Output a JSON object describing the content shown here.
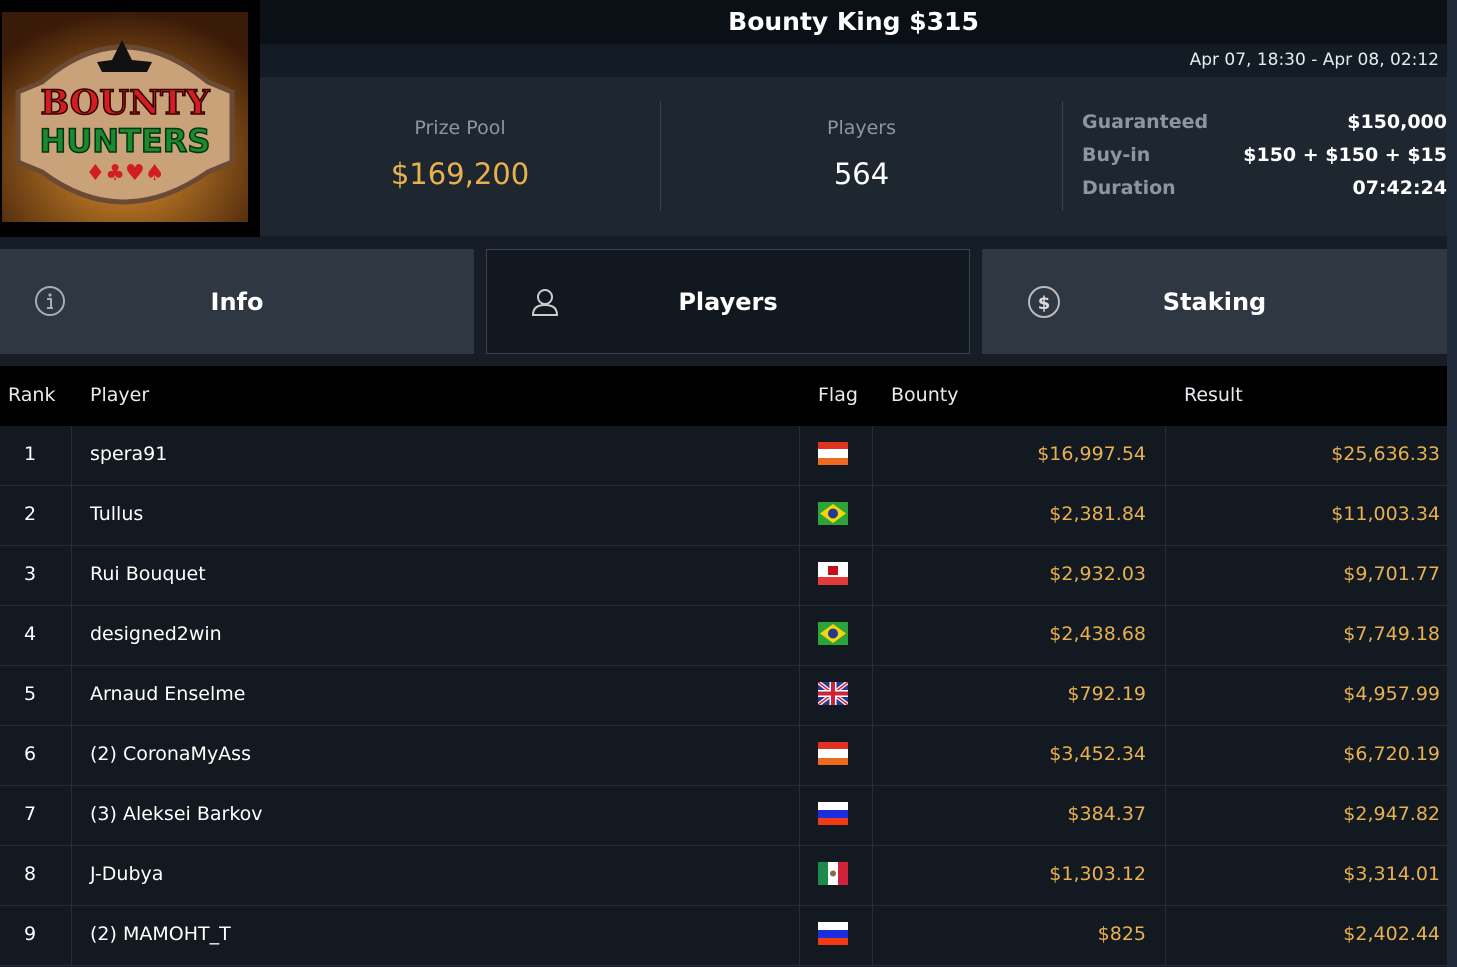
{
  "logo": {
    "text": "BOUNTY HUNTERS"
  },
  "header": {
    "title": "Bounty King $315",
    "date_range": "Apr 07, 18:30 - Apr 08, 02:12"
  },
  "stats": {
    "prize_pool_label": "Prize Pool",
    "prize_pool": "$169,200",
    "players_label": "Players",
    "players": "564",
    "details": [
      {
        "label": "Guaranteed",
        "value": "$150,000"
      },
      {
        "label": "Buy-in",
        "value": "$150 + $150 + $15"
      },
      {
        "label": "Duration",
        "value": "07:42:24"
      }
    ]
  },
  "tabs": [
    {
      "label": "Info",
      "icon": "info-icon"
    },
    {
      "label": "Players",
      "icon": "user-icon",
      "active": true
    },
    {
      "label": "Staking",
      "icon": "dollar-coin-icon"
    }
  ],
  "table": {
    "headers": {
      "rank": "Rank",
      "player": "Player",
      "flag": "Flag",
      "bounty": "Bounty",
      "result": "Result"
    },
    "rows": [
      {
        "rank": "1",
        "player": "spera91",
        "flag": "austria",
        "bounty": "$16,997.54",
        "result": "$25,636.33"
      },
      {
        "rank": "2",
        "player": "Tullus",
        "flag": "brazil",
        "bounty": "$2,381.84",
        "result": "$11,003.34"
      },
      {
        "rank": "3",
        "player": "Rui Bouquet",
        "flag": "gibraltar",
        "bounty": "$2,932.03",
        "result": "$9,701.77"
      },
      {
        "rank": "4",
        "player": "designed2win",
        "flag": "brazil",
        "bounty": "$2,438.68",
        "result": "$7,749.18"
      },
      {
        "rank": "5",
        "player": "Arnaud Enselme",
        "flag": "uk",
        "bounty": "$792.19",
        "result": "$4,957.99"
      },
      {
        "rank": "6",
        "player": "(2) CoronaMyAss",
        "flag": "austria",
        "bounty": "$3,452.34",
        "result": "$6,720.19"
      },
      {
        "rank": "7",
        "player": "(3) Aleksei Barkov",
        "flag": "russia",
        "bounty": "$384.37",
        "result": "$2,947.82"
      },
      {
        "rank": "8",
        "player": "J-Dubya",
        "flag": "mexico",
        "bounty": "$1,303.12",
        "result": "$3,314.01"
      },
      {
        "rank": "9",
        "player": "(2) MAMOHT_T",
        "flag": "russia",
        "bounty": "$825",
        "result": "$2,402.44"
      }
    ]
  },
  "colors": {
    "accent_gold": "#e8b04f",
    "panel": "#1e2630",
    "tab": "#2e3742",
    "active_tab": "#111820"
  }
}
